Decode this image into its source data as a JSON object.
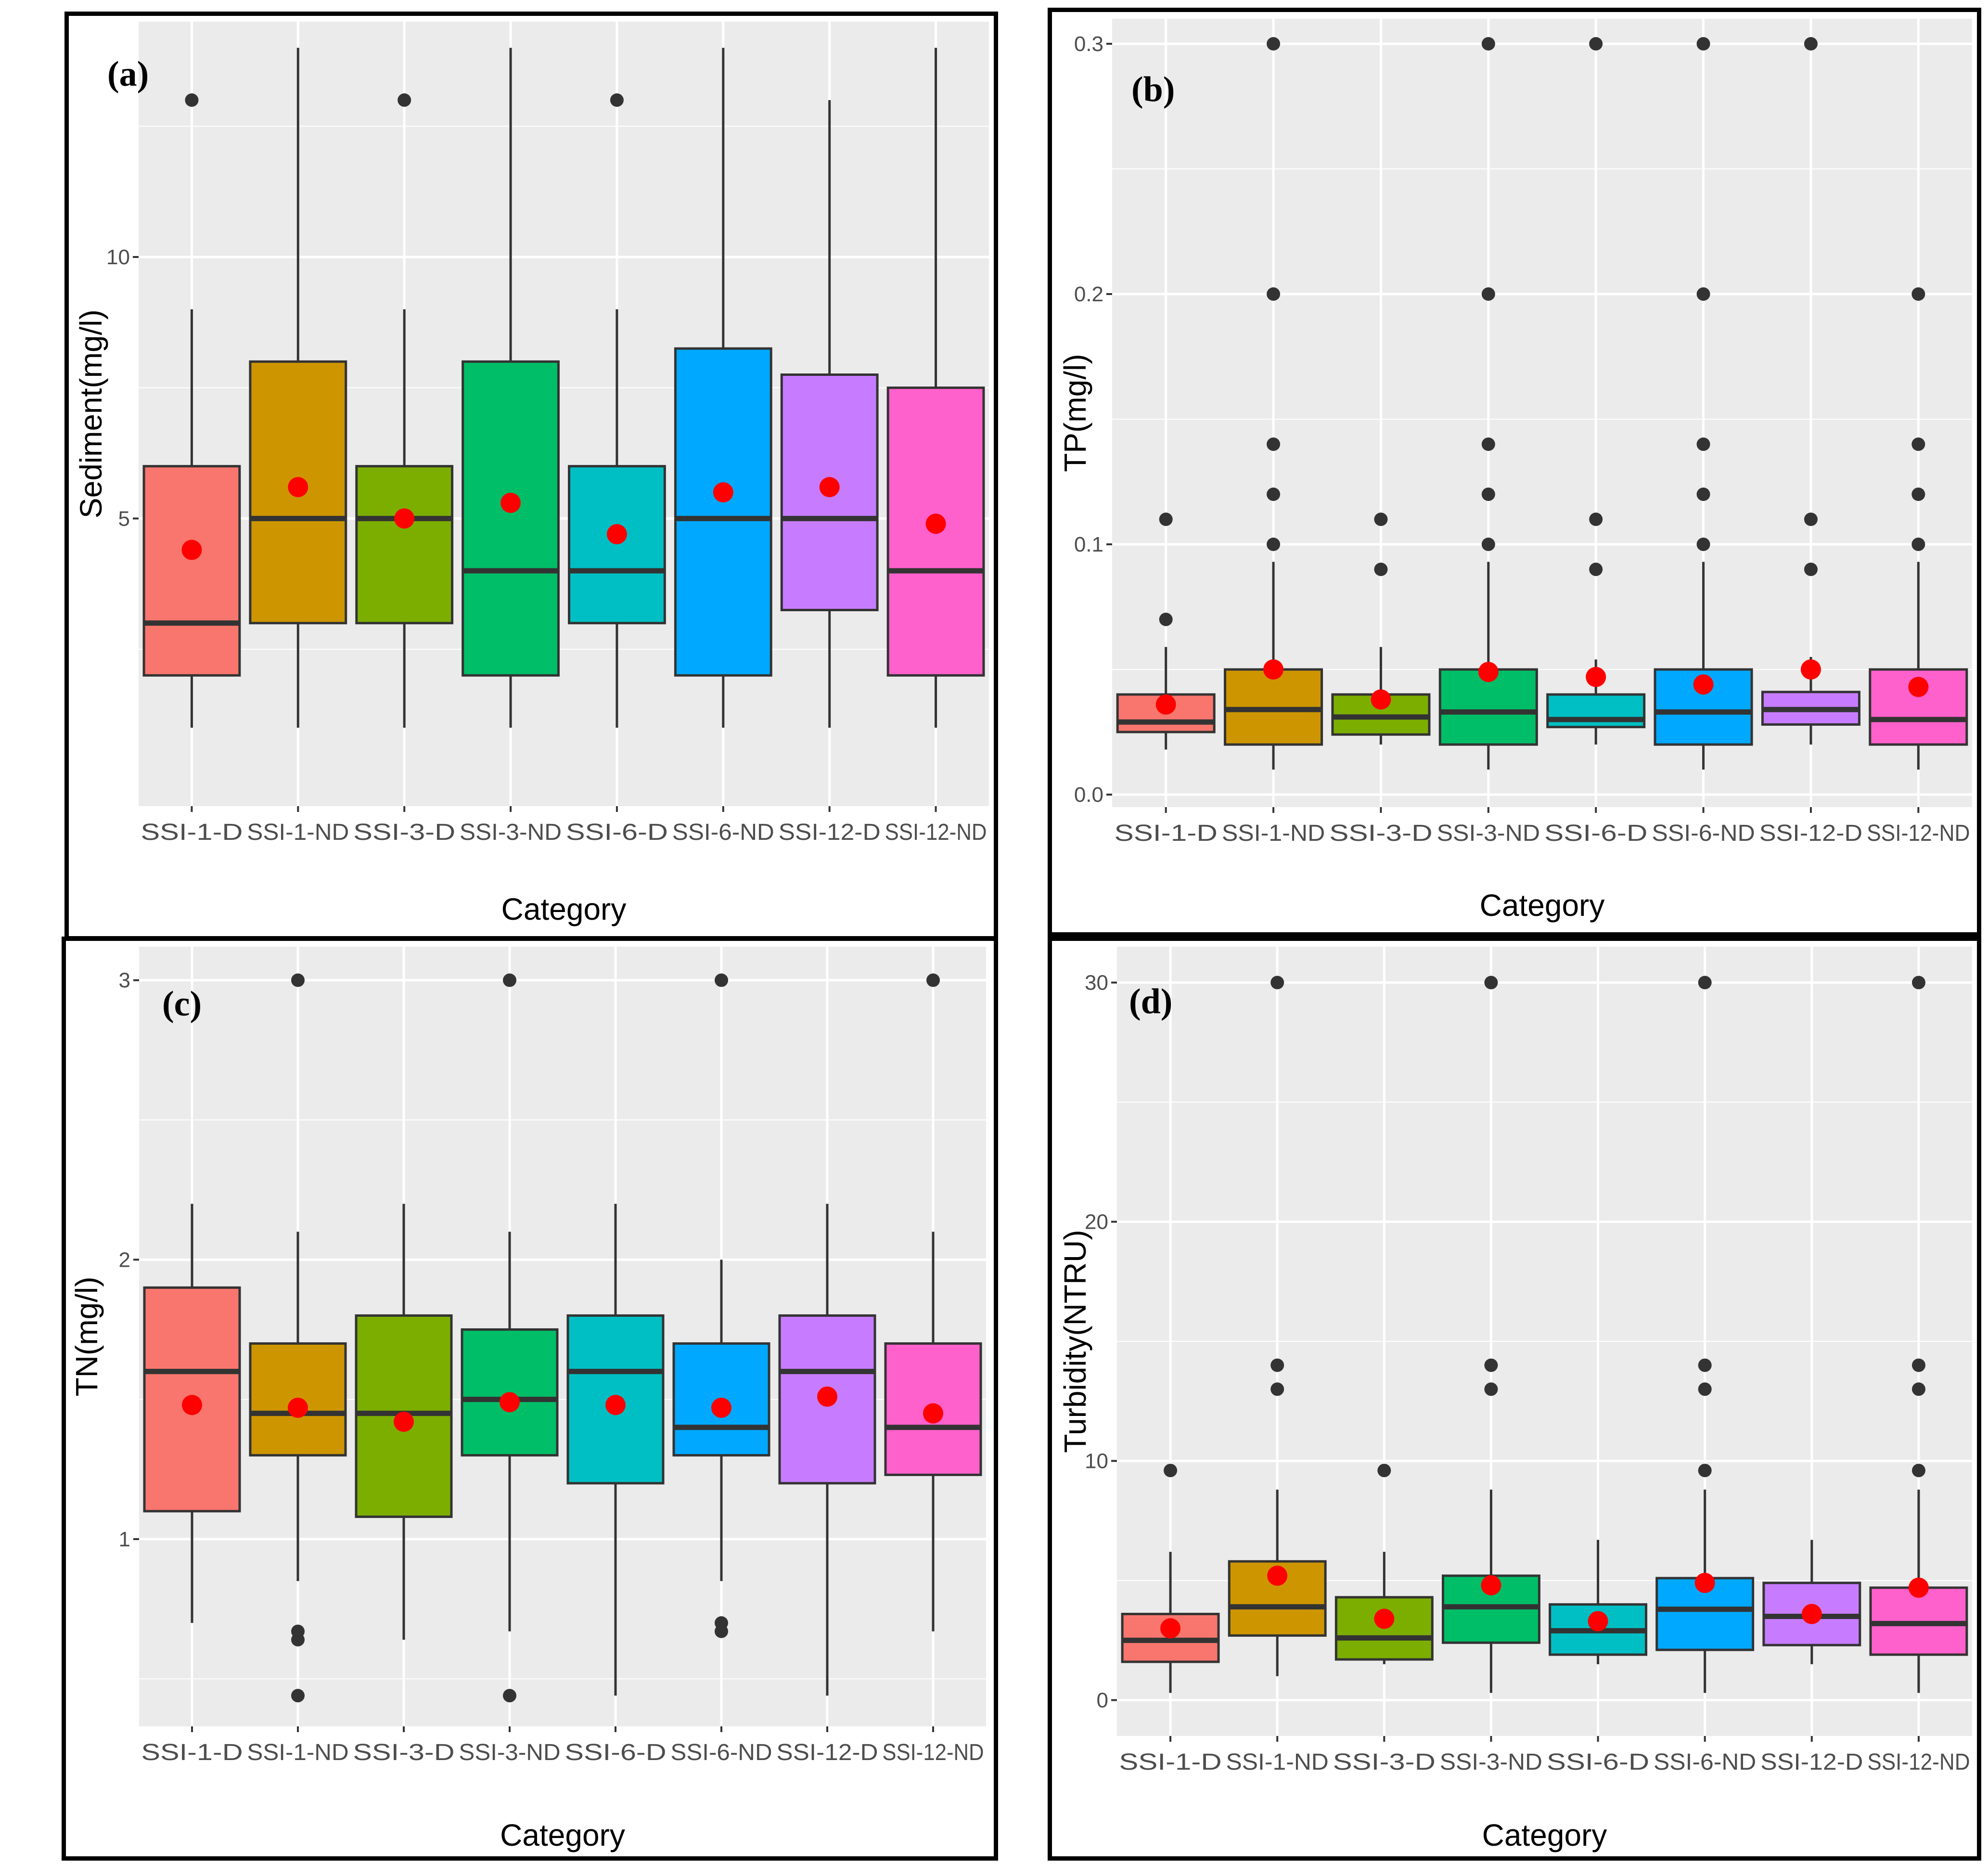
{
  "figure": {
    "description_colors": {
      "panel_background": "#ebebeb",
      "gridline": "#ffffff",
      "mean_point": "#ff0000",
      "outlier_point": "#333333"
    }
  },
  "chart_data": [
    {
      "panel": "(a)",
      "type": "box",
      "title": "",
      "xlabel": "Category",
      "ylabel": "Sediment(mg/l)",
      "ylim": [
        -0.5,
        14.5
      ],
      "yticks": [
        5,
        10
      ],
      "categories": [
        "SSI-1-D",
        "SSI-1-ND",
        "SSI-3-D",
        "SSI-3-ND",
        "SSI-6-D",
        "SSI-6-ND",
        "SSI-12-D",
        "SSI-12-ND"
      ],
      "colors": [
        "#f8766d",
        "#cd9600",
        "#7cae00",
        "#00be67",
        "#00bfc4",
        "#00a9ff",
        "#c77cff",
        "#ff61cc"
      ],
      "boxes": [
        {
          "whisker_low": 1,
          "q1": 2,
          "median": 3,
          "q3": 6,
          "whisker_high": 9,
          "mean": 4.4,
          "outliers": [
            13
          ]
        },
        {
          "whisker_low": 1,
          "q1": 3,
          "median": 5,
          "q3": 8,
          "whisker_high": 14,
          "mean": 5.6,
          "outliers": []
        },
        {
          "whisker_low": 1,
          "q1": 3,
          "median": 5,
          "q3": 6,
          "whisker_high": 9,
          "mean": 5.0,
          "outliers": [
            13
          ]
        },
        {
          "whisker_low": 1,
          "q1": 2,
          "median": 4,
          "q3": 8,
          "whisker_high": 14,
          "mean": 5.3,
          "outliers": []
        },
        {
          "whisker_low": 1,
          "q1": 3,
          "median": 4,
          "q3": 6,
          "whisker_high": 9,
          "mean": 4.7,
          "outliers": [
            13
          ]
        },
        {
          "whisker_low": 1,
          "q1": 2,
          "median": 5,
          "q3": 8.25,
          "whisker_high": 14,
          "mean": 5.5,
          "outliers": []
        },
        {
          "whisker_low": 1,
          "q1": 3.25,
          "median": 5,
          "q3": 7.75,
          "whisker_high": 13,
          "mean": 5.6,
          "outliers": []
        },
        {
          "whisker_low": 1,
          "q1": 2,
          "median": 4,
          "q3": 7.5,
          "whisker_high": 14,
          "mean": 4.9,
          "outliers": []
        }
      ]
    },
    {
      "panel": "(b)",
      "type": "box",
      "title": "",
      "xlabel": "Category",
      "ylabel": "TP(mg/l)",
      "ylim": [
        -0.005,
        0.31
      ],
      "yticks": [
        0.0,
        0.1,
        0.2,
        0.3
      ],
      "ytick_labels": [
        "0.0",
        "0.1",
        "0.2",
        "0.3"
      ],
      "categories": [
        "SSI-1-D",
        "SSI-1-ND",
        "SSI-3-D",
        "SSI-3-ND",
        "SSI-6-D",
        "SSI-6-ND",
        "SSI-12-D",
        "SSI-12-ND"
      ],
      "colors": [
        "#f8766d",
        "#cd9600",
        "#7cae00",
        "#00be67",
        "#00bfc4",
        "#00a9ff",
        "#c77cff",
        "#ff61cc"
      ],
      "boxes": [
        {
          "whisker_low": 0.018,
          "q1": 0.025,
          "median": 0.029,
          "q3": 0.04,
          "whisker_high": 0.059,
          "mean": 0.036,
          "outliers": [
            0.07,
            0.11
          ]
        },
        {
          "whisker_low": 0.01,
          "q1": 0.02,
          "median": 0.034,
          "q3": 0.05,
          "whisker_high": 0.093,
          "mean": 0.05,
          "outliers": [
            0.1,
            0.12,
            0.14,
            0.2,
            0.3
          ]
        },
        {
          "whisker_low": 0.02,
          "q1": 0.024,
          "median": 0.031,
          "q3": 0.04,
          "whisker_high": 0.059,
          "mean": 0.038,
          "outliers": [
            0.09,
            0.11
          ]
        },
        {
          "whisker_low": 0.01,
          "q1": 0.02,
          "median": 0.033,
          "q3": 0.05,
          "whisker_high": 0.093,
          "mean": 0.049,
          "outliers": [
            0.1,
            0.12,
            0.14,
            0.2,
            0.3
          ]
        },
        {
          "whisker_low": 0.02,
          "q1": 0.027,
          "median": 0.03,
          "q3": 0.04,
          "whisker_high": 0.054,
          "mean": 0.047,
          "outliers": [
            0.09,
            0.11,
            0.3
          ]
        },
        {
          "whisker_low": 0.01,
          "q1": 0.02,
          "median": 0.033,
          "q3": 0.05,
          "whisker_high": 0.093,
          "mean": 0.044,
          "outliers": [
            0.1,
            0.12,
            0.14,
            0.2,
            0.3
          ]
        },
        {
          "whisker_low": 0.02,
          "q1": 0.028,
          "median": 0.034,
          "q3": 0.041,
          "whisker_high": 0.055,
          "mean": 0.05,
          "outliers": [
            0.09,
            0.11,
            0.3
          ]
        },
        {
          "whisker_low": 0.01,
          "q1": 0.02,
          "median": 0.03,
          "q3": 0.05,
          "whisker_high": 0.093,
          "mean": 0.043,
          "outliers": [
            0.1,
            0.12,
            0.14,
            0.2
          ]
        }
      ]
    },
    {
      "panel": "(c)",
      "type": "box",
      "title": "",
      "xlabel": "Category",
      "ylabel": "TN(mg/l)",
      "ylim": [
        0.33,
        3.12
      ],
      "yticks": [
        1,
        2,
        3
      ],
      "categories": [
        "SSI-1-D",
        "SSI-1-ND",
        "SSI-3-D",
        "SSI-3-ND",
        "SSI-6-D",
        "SSI-6-ND",
        "SSI-12-D",
        "SSI-12-ND"
      ],
      "colors": [
        "#f8766d",
        "#cd9600",
        "#7cae00",
        "#00be67",
        "#00bfc4",
        "#00a9ff",
        "#c77cff",
        "#ff61cc"
      ],
      "boxes": [
        {
          "whisker_low": 0.7,
          "q1": 1.1,
          "median": 1.6,
          "q3": 1.9,
          "whisker_high": 2.2,
          "mean": 1.48,
          "outliers": []
        },
        {
          "whisker_low": 0.85,
          "q1": 1.3,
          "median": 1.45,
          "q3": 1.7,
          "whisker_high": 2.1,
          "mean": 1.47,
          "outliers": [
            0.44,
            0.64,
            0.67,
            3.0
          ]
        },
        {
          "whisker_low": 0.64,
          "q1": 1.08,
          "median": 1.45,
          "q3": 1.8,
          "whisker_high": 2.2,
          "mean": 1.42,
          "outliers": []
        },
        {
          "whisker_low": 0.67,
          "q1": 1.3,
          "median": 1.5,
          "q3": 1.75,
          "whisker_high": 2.1,
          "mean": 1.49,
          "outliers": [
            0.44,
            3.0
          ]
        },
        {
          "whisker_low": 0.44,
          "q1": 1.2,
          "median": 1.6,
          "q3": 1.8,
          "whisker_high": 2.2,
          "mean": 1.48,
          "outliers": []
        },
        {
          "whisker_low": 0.85,
          "q1": 1.3,
          "median": 1.4,
          "q3": 1.7,
          "whisker_high": 2.0,
          "mean": 1.47,
          "outliers": [
            0.67,
            0.7,
            3.0
          ]
        },
        {
          "whisker_low": 0.44,
          "q1": 1.2,
          "median": 1.6,
          "q3": 1.8,
          "whisker_high": 2.2,
          "mean": 1.51,
          "outliers": []
        },
        {
          "whisker_low": 0.67,
          "q1": 1.23,
          "median": 1.4,
          "q3": 1.7,
          "whisker_high": 2.1,
          "mean": 1.45,
          "outliers": [
            3.0
          ]
        }
      ]
    },
    {
      "panel": "(d)",
      "type": "box",
      "title": "",
      "xlabel": "Category",
      "ylabel": "Turbidity(NTRU)",
      "ylim": [
        -1.5,
        31.5
      ],
      "yticks": [
        0,
        10,
        20,
        30
      ],
      "categories": [
        "SSI-1-D",
        "SSI-1-ND",
        "SSI-3-D",
        "SSI-3-ND",
        "SSI-6-D",
        "SSI-6-ND",
        "SSI-12-D",
        "SSI-12-ND"
      ],
      "colors": [
        "#f8766d",
        "#cd9600",
        "#7cae00",
        "#00be67",
        "#00bfc4",
        "#00a9ff",
        "#c77cff",
        "#ff61cc"
      ],
      "boxes": [
        {
          "whisker_low": 0.3,
          "q1": 1.6,
          "median": 2.5,
          "q3": 3.6,
          "whisker_high": 6.2,
          "mean": 3.0,
          "outliers": [
            9.6
          ]
        },
        {
          "whisker_low": 1.0,
          "q1": 2.7,
          "median": 3.9,
          "q3": 5.8,
          "whisker_high": 8.8,
          "mean": 5.2,
          "outliers": [
            13.0,
            14.0,
            30.0
          ]
        },
        {
          "whisker_low": 1.5,
          "q1": 1.7,
          "median": 2.6,
          "q3": 4.3,
          "whisker_high": 6.2,
          "mean": 3.4,
          "outliers": [
            9.6
          ]
        },
        {
          "whisker_low": 0.3,
          "q1": 2.4,
          "median": 3.9,
          "q3": 5.2,
          "whisker_high": 8.8,
          "mean": 4.8,
          "outliers": [
            13.0,
            14.0,
            30.0
          ]
        },
        {
          "whisker_low": 1.5,
          "q1": 1.9,
          "median": 2.9,
          "q3": 4.0,
          "whisker_high": 6.7,
          "mean": 3.3,
          "outliers": []
        },
        {
          "whisker_low": 0.3,
          "q1": 2.1,
          "median": 3.8,
          "q3": 5.1,
          "whisker_high": 8.8,
          "mean": 4.9,
          "outliers": [
            9.6,
            13.0,
            14.0,
            30.0
          ]
        },
        {
          "whisker_low": 1.5,
          "q1": 2.3,
          "median": 3.5,
          "q3": 4.9,
          "whisker_high": 6.7,
          "mean": 3.6,
          "outliers": []
        },
        {
          "whisker_low": 0.3,
          "q1": 1.9,
          "median": 3.2,
          "q3": 4.7,
          "whisker_high": 8.8,
          "mean": 4.7,
          "outliers": [
            9.6,
            13.0,
            14.0,
            30.0
          ]
        }
      ]
    }
  ]
}
